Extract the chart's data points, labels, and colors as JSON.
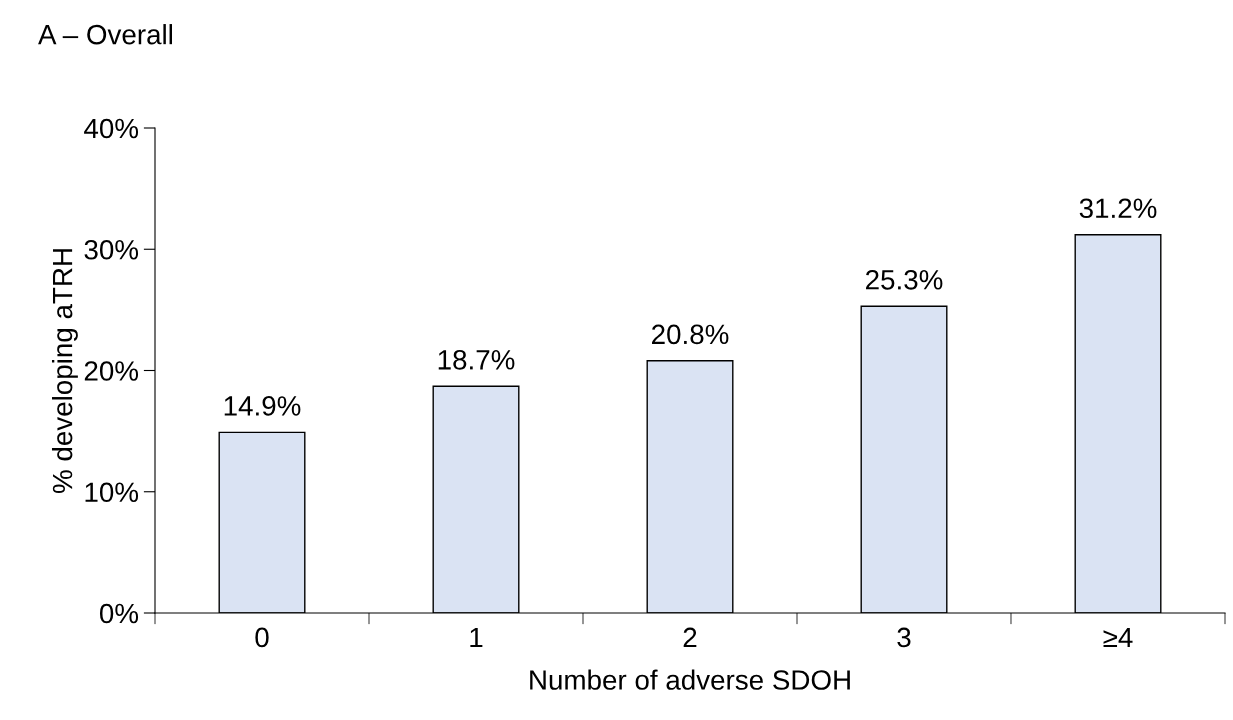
{
  "chart_data": {
    "type": "bar",
    "title": "A – Overall",
    "xlabel": "Number of adverse SDOH",
    "ylabel": "% developing aTRH",
    "categories": [
      "0",
      "1",
      "2",
      "3",
      "≥4"
    ],
    "values": [
      14.9,
      18.7,
      20.8,
      25.3,
      31.2
    ],
    "value_labels": [
      "14.9%",
      "18.7%",
      "20.8%",
      "25.3%",
      "31.2%"
    ],
    "color": "#dae3f3",
    "ylim": [
      0,
      40
    ],
    "yticks": [
      {
        "value": 0,
        "label": "0%"
      },
      {
        "value": 10,
        "label": "10%"
      },
      {
        "value": 20,
        "label": "20%"
      },
      {
        "value": 30,
        "label": "30%"
      },
      {
        "value": 40,
        "label": "40%"
      }
    ],
    "grid": false
  }
}
